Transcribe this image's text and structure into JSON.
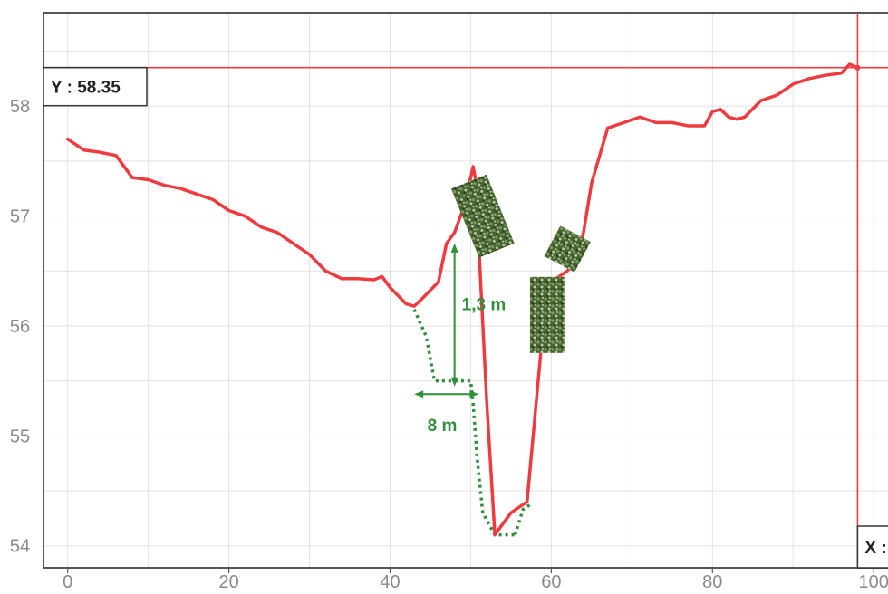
{
  "chart_data": {
    "type": "line",
    "title": "",
    "xlabel": "",
    "ylabel": "",
    "xlim": [
      -3,
      102
    ],
    "ylim": [
      53.8,
      58.85
    ],
    "grid": true,
    "x_ticks": [
      0,
      20,
      40,
      60,
      80,
      100
    ],
    "x_tick_labels": [
      "0",
      "20",
      "40",
      "60",
      "80",
      "100"
    ],
    "y_ticks": [
      54,
      55,
      56,
      57,
      58
    ],
    "y_tick_labels": [
      "54",
      "55",
      "56",
      "57",
      "58"
    ],
    "colors": {
      "profile": "#ee3b3f",
      "annotation": "#2f8f3a",
      "grid": "#e2e2e2",
      "axis": "#555555",
      "tick_text": "#8a8a8a",
      "tree": "#4a6b34"
    },
    "series": [
      {
        "x": [
          0,
          2,
          4,
          6,
          8,
          10,
          12,
          14,
          16,
          18,
          20,
          22,
          24,
          26,
          28,
          30,
          32,
          34,
          36,
          38,
          39,
          40,
          42,
          43,
          44,
          46,
          47,
          48,
          49,
          50,
          50.3,
          50.7,
          51.1,
          52,
          53,
          54,
          55,
          56,
          57,
          58,
          59,
          60,
          61,
          62,
          63,
          64,
          65,
          67,
          69,
          71,
          73,
          75,
          77,
          79,
          80,
          81,
          82,
          83,
          84,
          86,
          88,
          90,
          92,
          94,
          96,
          97,
          98
        ],
        "y": [
          57.7,
          57.6,
          57.58,
          57.55,
          57.35,
          57.33,
          57.28,
          57.25,
          57.2,
          57.15,
          57.05,
          57.0,
          56.9,
          56.85,
          56.75,
          56.65,
          56.5,
          56.43,
          56.43,
          56.42,
          56.45,
          56.35,
          56.2,
          56.18,
          56.25,
          56.4,
          56.75,
          56.85,
          57.05,
          57.35,
          57.45,
          57.3,
          56.6,
          55.3,
          54.1,
          54.2,
          54.3,
          54.35,
          54.4,
          55.2,
          56.0,
          56.4,
          56.45,
          56.5,
          56.6,
          56.85,
          57.3,
          57.8,
          57.85,
          57.9,
          57.85,
          57.85,
          57.82,
          57.82,
          57.95,
          57.97,
          57.9,
          57.88,
          57.9,
          58.05,
          58.1,
          58.2,
          58.25,
          58.28,
          58.3,
          58.38,
          58.35
        ]
      }
    ],
    "cursor": {
      "x": 98,
      "y": 58.35,
      "y_readout": "Y : 58.35",
      "x_readout": "X :"
    },
    "annotations": {
      "excavation_profile": {
        "x": [
          43,
          44.5,
          45.5,
          50,
          50.3,
          50.8,
          51.5,
          53,
          54,
          55,
          55.5
        ],
        "y": [
          56.15,
          55.9,
          55.5,
          55.5,
          55.3,
          54.8,
          54.3,
          54.1,
          54.1,
          54.1,
          54.1
        ]
      },
      "bank_side": {
        "x": [
          55.5,
          56.5,
          57.5
        ],
        "y": [
          54.1,
          54.33,
          54.38
        ]
      },
      "height_label": "1,3 m",
      "height_arrow": {
        "x": 48,
        "y_top": 56.75,
        "y_bottom": 55.45
      },
      "width_label": "8 m",
      "width_arrow": {
        "x_left": 43,
        "x_right": 51,
        "y": 55.38
      }
    },
    "trees": [
      {
        "name": "tree-left-bank",
        "x": 51.5,
        "y": 57.0
      },
      {
        "name": "tree-channel",
        "x": 59.5,
        "y": 56.1
      },
      {
        "name": "tree-right-bank",
        "x": 62,
        "y": 56.7
      }
    ]
  }
}
